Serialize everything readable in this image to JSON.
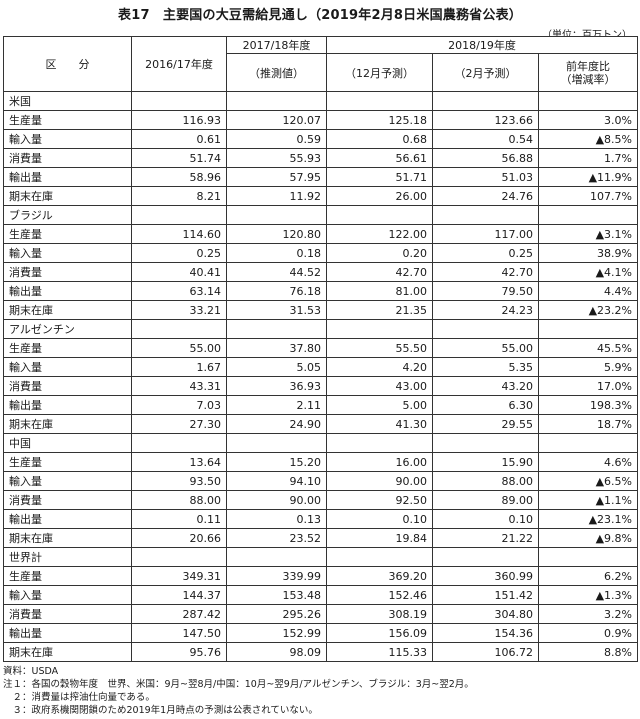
{
  "title": "表17　主要国の大豆需給見通し（2019年2月8日米国農務省公表）",
  "unit": "（単位：百万トン）",
  "header": {
    "category": "区　　分",
    "col_2016": "2016/17年度",
    "col_2017": "2017/18年度",
    "col_2017_sub": "（推測値）",
    "col_2018": "2018/19年度",
    "col_dec": "（12月予測）",
    "col_feb": "（2月予測）",
    "col_change": "前年度比\n（増減率）"
  },
  "groups": [
    {
      "region": "米国",
      "rows": [
        {
          "item": "生産量",
          "v1": "116.93",
          "v2": "120.07",
          "v3": "125.18",
          "v4": "123.66",
          "v5": "3.0%"
        },
        {
          "item": "輸入量",
          "v1": "0.61",
          "v2": "0.59",
          "v3": "0.68",
          "v4": "0.54",
          "v5": "▲8.5%"
        },
        {
          "item": "消費量",
          "v1": "51.74",
          "v2": "55.93",
          "v3": "56.61",
          "v4": "56.88",
          "v5": "1.7%"
        },
        {
          "item": "輸出量",
          "v1": "58.96",
          "v2": "57.95",
          "v3": "51.71",
          "v4": "51.03",
          "v5": "▲11.9%"
        },
        {
          "item": "期末在庫",
          "v1": "8.21",
          "v2": "11.92",
          "v3": "26.00",
          "v4": "24.76",
          "v5": "107.7%"
        }
      ]
    },
    {
      "region": "ブラジル",
      "rows": [
        {
          "item": "生産量",
          "v1": "114.60",
          "v2": "120.80",
          "v3": "122.00",
          "v4": "117.00",
          "v5": "▲3.1%"
        },
        {
          "item": "輸入量",
          "v1": "0.25",
          "v2": "0.18",
          "v3": "0.20",
          "v4": "0.25",
          "v5": "38.9%"
        },
        {
          "item": "消費量",
          "v1": "40.41",
          "v2": "44.52",
          "v3": "42.70",
          "v4": "42.70",
          "v5": "▲4.1%"
        },
        {
          "item": "輸出量",
          "v1": "63.14",
          "v2": "76.18",
          "v3": "81.00",
          "v4": "79.50",
          "v5": "4.4%"
        },
        {
          "item": "期末在庫",
          "v1": "33.21",
          "v2": "31.53",
          "v3": "21.35",
          "v4": "24.23",
          "v5": "▲23.2%"
        }
      ]
    },
    {
      "region": "アルゼンチン",
      "rows": [
        {
          "item": "生産量",
          "v1": "55.00",
          "v2": "37.80",
          "v3": "55.50",
          "v4": "55.00",
          "v5": "45.5%"
        },
        {
          "item": "輸入量",
          "v1": "1.67",
          "v2": "5.05",
          "v3": "4.20",
          "v4": "5.35",
          "v5": "5.9%"
        },
        {
          "item": "消費量",
          "v1": "43.31",
          "v2": "36.93",
          "v3": "43.00",
          "v4": "43.20",
          "v5": "17.0%"
        },
        {
          "item": "輸出量",
          "v1": "7.03",
          "v2": "2.11",
          "v3": "5.00",
          "v4": "6.30",
          "v5": "198.3%"
        },
        {
          "item": "期末在庫",
          "v1": "27.30",
          "v2": "24.90",
          "v3": "41.30",
          "v4": "29.55",
          "v5": "18.7%"
        }
      ]
    },
    {
      "region": "中国",
      "rows": [
        {
          "item": "生産量",
          "v1": "13.64",
          "v2": "15.20",
          "v3": "16.00",
          "v4": "15.90",
          "v5": "4.6%"
        },
        {
          "item": "輸入量",
          "v1": "93.50",
          "v2": "94.10",
          "v3": "90.00",
          "v4": "88.00",
          "v5": "▲6.5%"
        },
        {
          "item": "消費量",
          "v1": "88.00",
          "v2": "90.00",
          "v3": "92.50",
          "v4": "89.00",
          "v5": "▲1.1%"
        },
        {
          "item": "輸出量",
          "v1": "0.11",
          "v2": "0.13",
          "v3": "0.10",
          "v4": "0.10",
          "v5": "▲23.1%"
        },
        {
          "item": "期末在庫",
          "v1": "20.66",
          "v2": "23.52",
          "v3": "19.84",
          "v4": "21.22",
          "v5": "▲9.8%"
        }
      ]
    },
    {
      "region": "世界計",
      "rows": [
        {
          "item": "生産量",
          "v1": "349.31",
          "v2": "339.99",
          "v3": "369.20",
          "v4": "360.99",
          "v5": "6.2%"
        },
        {
          "item": "輸入量",
          "v1": "144.37",
          "v2": "153.48",
          "v3": "152.46",
          "v4": "151.42",
          "v5": "▲1.3%"
        },
        {
          "item": "消費量",
          "v1": "287.42",
          "v2": "295.26",
          "v3": "308.19",
          "v4": "304.80",
          "v5": "3.2%"
        },
        {
          "item": "輸出量",
          "v1": "147.50",
          "v2": "152.99",
          "v3": "156.09",
          "v4": "154.36",
          "v5": "0.9%"
        },
        {
          "item": "期末在庫",
          "v1": "95.76",
          "v2": "98.09",
          "v3": "115.33",
          "v4": "106.72",
          "v5": "8.8%"
        }
      ]
    }
  ],
  "notes": [
    "資料：USDA",
    "注１：各国の穀物年度　世界、米国：9月~翌8月/中国：10月~翌9月/アルゼンチン、ブラジル：3月~翌2月。",
    "　２：消費量は搾油仕向量である。",
    "　３：政府系機関閉鎖のため2019年1月時点の予測は公表されていない。"
  ]
}
